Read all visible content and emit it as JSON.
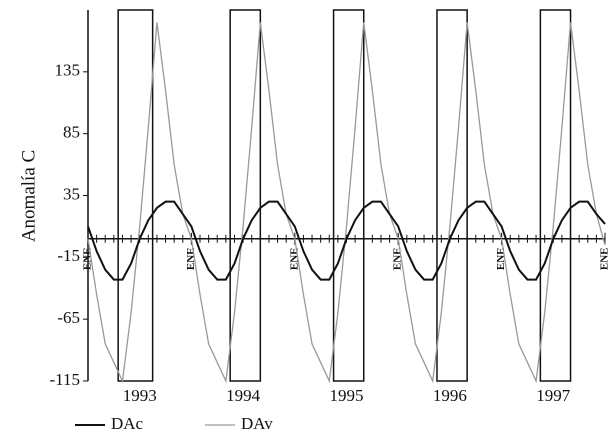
{
  "chart_data": {
    "type": "line",
    "y_label": "Anomalía C",
    "x": [
      0,
      1,
      2,
      3,
      4,
      5,
      6,
      7,
      8,
      9,
      10,
      11,
      12,
      13,
      14,
      15,
      16,
      17,
      18,
      19,
      20,
      21,
      22,
      23,
      24,
      25,
      26,
      27,
      28,
      29,
      30,
      31,
      32,
      33,
      34,
      35,
      36,
      37,
      38,
      39,
      40,
      41,
      42,
      43,
      44,
      45,
      46,
      47,
      48,
      49,
      50,
      51,
      52,
      53,
      54,
      55,
      56,
      57,
      58,
      59,
      60
    ],
    "xlim": [
      0,
      60
    ],
    "xticks": [
      {
        "value": 0,
        "label": "ENE"
      },
      {
        "value": 12,
        "label": "ENE"
      },
      {
        "value": 24,
        "label": "ENE"
      },
      {
        "value": 36,
        "label": "ENE"
      },
      {
        "value": 48,
        "label": "ENE"
      },
      {
        "value": 60,
        "label": "ENE"
      }
    ],
    "year_labels": [
      {
        "value": 6,
        "label": "1993"
      },
      {
        "value": 18,
        "label": "1994"
      },
      {
        "value": 30,
        "label": "1995"
      },
      {
        "value": 42,
        "label": "1996"
      },
      {
        "value": 54,
        "label": "1997"
      }
    ],
    "ylim": [
      -115,
      185
    ],
    "yticks": [
      -115,
      -65,
      -15,
      35,
      85,
      135
    ],
    "spans": [
      [
        3.5,
        7.5
      ],
      [
        16.5,
        20
      ],
      [
        28.5,
        32
      ],
      [
        40.5,
        44
      ],
      [
        52.5,
        56
      ]
    ],
    "series": [
      {
        "name": "DAc",
        "color": "#111111",
        "width": 2,
        "values": [
          10,
          -10,
          -25,
          -33,
          -33,
          -20,
          0,
          15,
          25,
          30,
          30,
          20,
          10,
          -10,
          -25,
          -33,
          -33,
          -20,
          0,
          15,
          25,
          30,
          30,
          20,
          10,
          -10,
          -25,
          -33,
          -33,
          -20,
          0,
          15,
          25,
          30,
          30,
          20,
          10,
          -10,
          -25,
          -33,
          -33,
          -20,
          0,
          15,
          25,
          30,
          30,
          20,
          10,
          -10,
          -25,
          -33,
          -33,
          -20,
          0,
          15,
          25,
          30,
          30,
          20,
          12
        ]
      },
      {
        "name": "DAv",
        "color": "#999999",
        "width": 1.3,
        "values": [
          0,
          -45,
          -85,
          -100,
          -115,
          -60,
          10,
          90,
          175,
          120,
          60,
          20,
          0,
          -45,
          -85,
          -100,
          -115,
          -60,
          10,
          90,
          175,
          120,
          60,
          20,
          0,
          -45,
          -85,
          -100,
          -115,
          -60,
          10,
          90,
          175,
          120,
          60,
          20,
          0,
          -45,
          -85,
          -100,
          -115,
          -60,
          10,
          90,
          175,
          120,
          60,
          20,
          0,
          -45,
          -85,
          -100,
          -115,
          -60,
          10,
          90,
          175,
          120,
          60,
          20,
          -5
        ]
      }
    ]
  }
}
